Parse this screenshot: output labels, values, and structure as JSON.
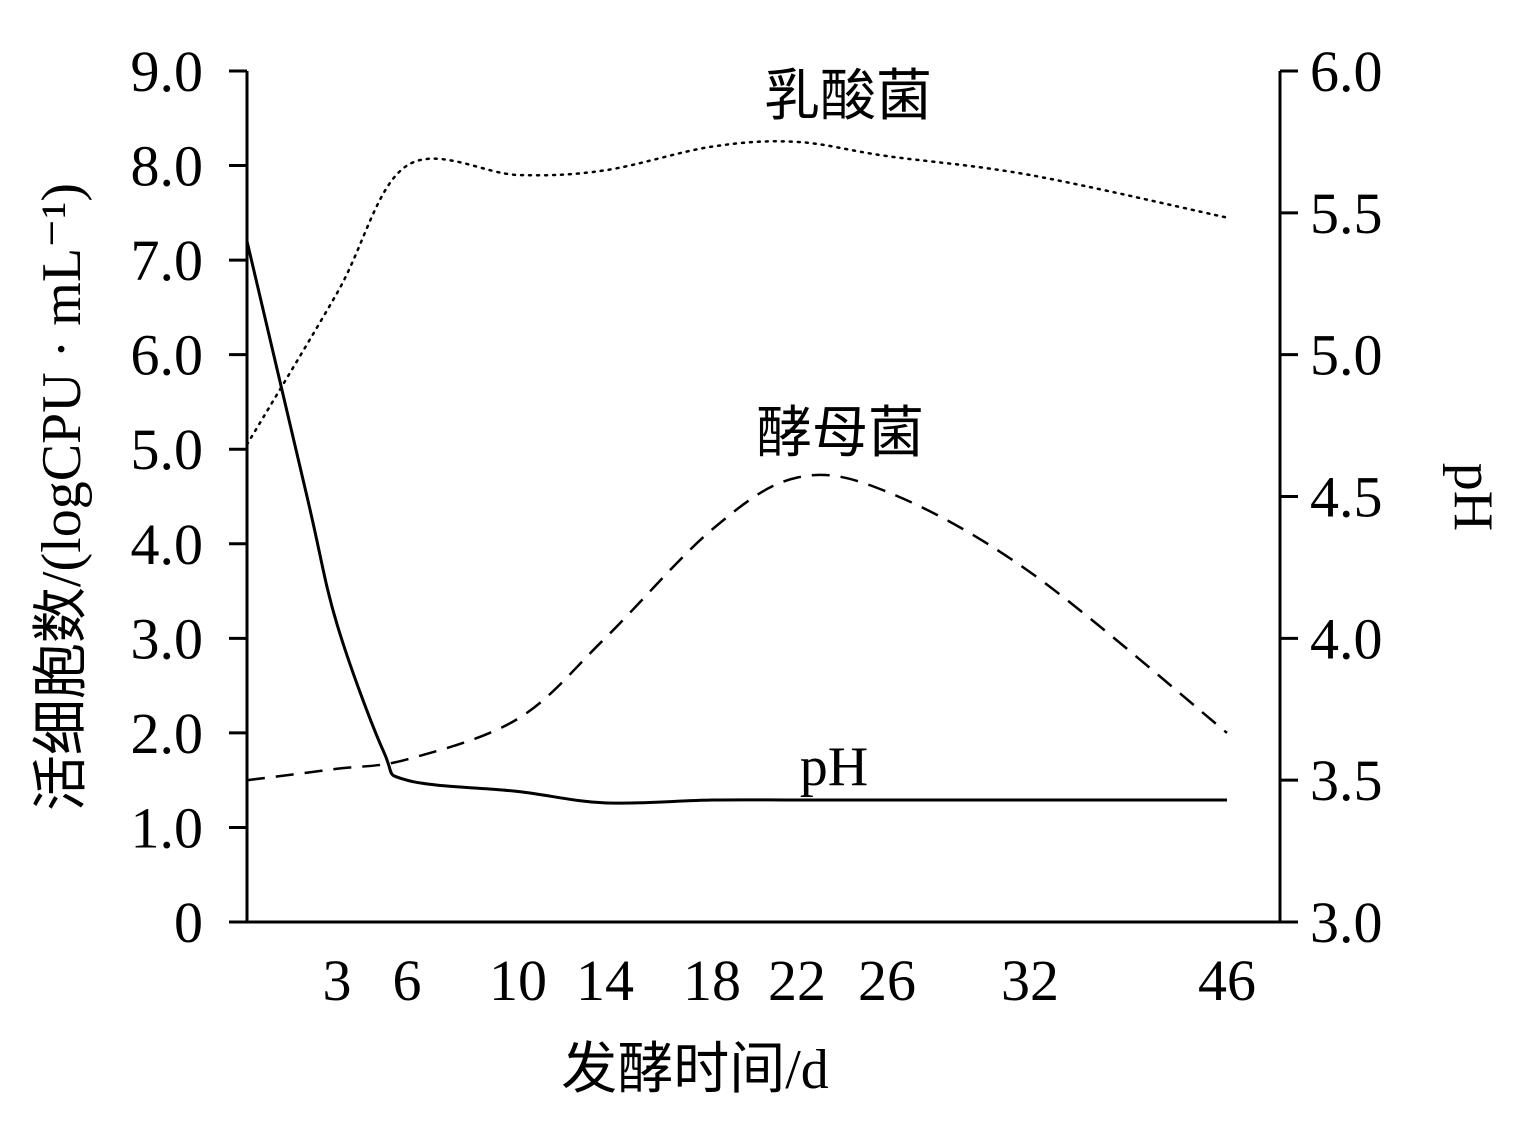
{
  "chart_data": {
    "type": "line",
    "xlabel": "发酵时间/d",
    "y_left_label": "活细胞数/(logCPU · mL⁻¹)",
    "y_right_label": "pH",
    "x_ticks": [
      "3",
      "6",
      "10",
      "14",
      "18",
      "22",
      "26",
      "32",
      "46"
    ],
    "y_left_ticks": [
      "0",
      "1.0",
      "2.0",
      "3.0",
      "4.0",
      "5.0",
      "6.0",
      "7.0",
      "8.0",
      "9.0"
    ],
    "y_right_ticks": [
      "3.0",
      "3.5",
      "4.0",
      "4.5",
      "5.0",
      "5.5",
      "6.0"
    ],
    "y_left_lim": [
      0,
      9
    ],
    "y_right_lim": [
      3.0,
      6.0
    ],
    "grid": false,
    "legend": "none (inline series labels)",
    "series": [
      {
        "name": "乳酸菌",
        "axis": "left",
        "style": "dotted",
        "x": [
          0,
          3,
          6,
          10,
          14,
          18,
          22,
          26,
          32,
          46
        ],
        "y": [
          5.05,
          6.65,
          8.0,
          7.9,
          7.95,
          8.2,
          8.25,
          8.1,
          7.9,
          7.45
        ]
      },
      {
        "name": "酵母菌",
        "axis": "left",
        "style": "dashed",
        "x": [
          0,
          3,
          6,
          10,
          14,
          18,
          22,
          26,
          32,
          46
        ],
        "y": [
          1.5,
          1.62,
          1.72,
          2.15,
          3.0,
          4.15,
          4.7,
          4.55,
          3.7,
          2.0
        ]
      },
      {
        "name": "pH",
        "axis": "right",
        "style": "solid",
        "x": [
          0,
          2,
          3,
          5,
          6,
          10,
          14,
          18,
          22,
          26,
          32,
          46
        ],
        "y": [
          5.4,
          4.5,
          4.05,
          3.6,
          3.5,
          3.46,
          3.42,
          3.43,
          3.43,
          3.43,
          3.43,
          3.43
        ]
      }
    ]
  }
}
